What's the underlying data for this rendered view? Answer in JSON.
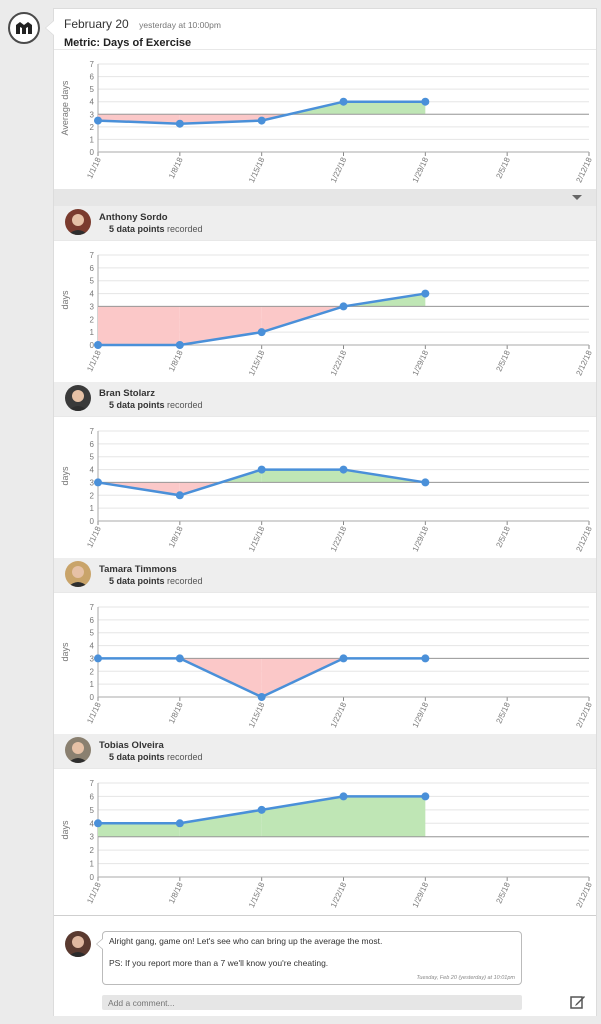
{
  "post": {
    "date": "February 20",
    "time": "yesterday at 10:00pm",
    "metric_title": "Metric: Days of Exercise"
  },
  "colors": {
    "line": "#4a90d9",
    "above": "#bfe6b5",
    "below": "#fbc8c8",
    "baseline": "#999999",
    "grid": "#e5e5e5"
  },
  "x_labels": [
    "1/1/18",
    "1/8/18",
    "1/15/18",
    "1/22/18",
    "1/29/18",
    "2/5/18",
    "2/12/18"
  ],
  "chart_data": [
    {
      "type": "line",
      "name": "Average",
      "ylabel": "Average days",
      "ylim": [
        0,
        7
      ],
      "baseline": 3,
      "x": [
        "1/1/18",
        "1/8/18",
        "1/15/18",
        "1/22/18",
        "1/29/18"
      ],
      "values": [
        2.5,
        2.25,
        2.5,
        4,
        4
      ]
    },
    {
      "type": "line",
      "name": "Anthony Sordo",
      "ylabel": "days",
      "ylim": [
        0,
        7
      ],
      "baseline": 3,
      "x": [
        "1/1/18",
        "1/8/18",
        "1/15/18",
        "1/22/18",
        "1/29/18"
      ],
      "values": [
        0,
        0,
        1,
        3,
        4
      ]
    },
    {
      "type": "line",
      "name": "Bran Stolarz",
      "ylabel": "days",
      "ylim": [
        0,
        7
      ],
      "baseline": 3,
      "x": [
        "1/1/18",
        "1/8/18",
        "1/15/18",
        "1/22/18",
        "1/29/18"
      ],
      "values": [
        3,
        2,
        4,
        4,
        3
      ]
    },
    {
      "type": "line",
      "name": "Tamara Timmons",
      "ylabel": "days",
      "ylim": [
        0,
        7
      ],
      "baseline": 3,
      "x": [
        "1/1/18",
        "1/8/18",
        "1/15/18",
        "1/22/18",
        "1/29/18"
      ],
      "values": [
        3,
        3,
        0,
        3,
        3
      ]
    },
    {
      "type": "line",
      "name": "Tobias Olveira",
      "ylabel": "days",
      "ylim": [
        0,
        7
      ],
      "baseline": 3,
      "x": [
        "1/1/18",
        "1/8/18",
        "1/15/18",
        "1/22/18",
        "1/29/18"
      ],
      "values": [
        4,
        4,
        5,
        6,
        6
      ]
    }
  ],
  "people": [
    {
      "name": "Anthony Sordo",
      "count_bold": "5 data points",
      "count_rest": " recorded",
      "avatar_color": "#7a3b2e"
    },
    {
      "name": "Bran Stolarz",
      "count_bold": "5 data points",
      "count_rest": " recorded",
      "avatar_color": "#3a3a3a"
    },
    {
      "name": "Tamara Timmons",
      "count_bold": "5 data points",
      "count_rest": " recorded",
      "avatar_color": "#c9a46a"
    },
    {
      "name": "Tobias Olveira",
      "count_bold": "5 data points",
      "count_rest": " recorded",
      "avatar_color": "#8a8070"
    }
  ],
  "comment": {
    "line1": "Alright gang, game on! Let's see who can bring up the average the most.",
    "line2": "PS: If you report more than a 7 we'll know you're cheating.",
    "timestamp": "Tuesday, Feb 20 (yesterday) at 10:01pm",
    "placeholder": "Add a comment..."
  }
}
